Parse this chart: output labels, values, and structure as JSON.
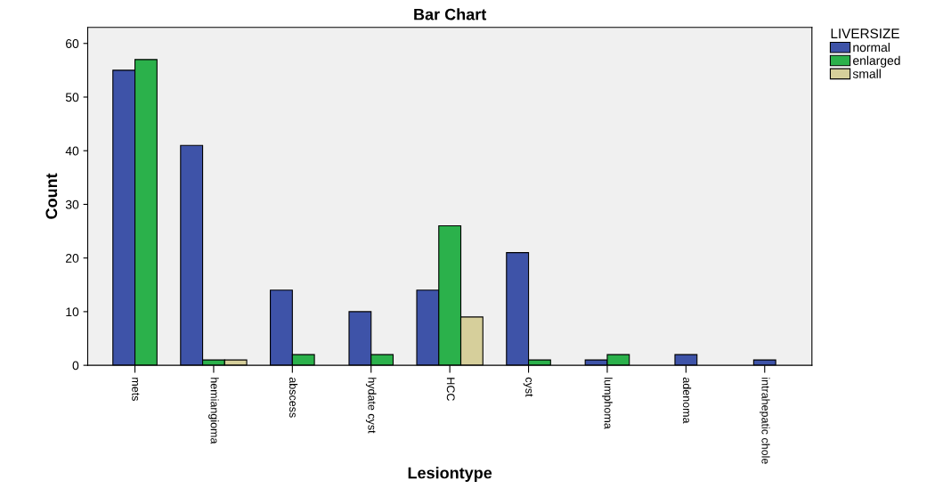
{
  "chart_data": {
    "type": "bar",
    "title": "Bar Chart",
    "xlabel": "Lesiontype",
    "ylabel": "Count",
    "legend_title": "LIVERSIZE",
    "categories": [
      "mets",
      "hemiangioma",
      "abscess",
      "hydate cyst",
      "HCC",
      "cyst",
      "lumphoma",
      "adenoma",
      "intrahepatic chole"
    ],
    "series": [
      {
        "name": "normal",
        "color": "#3e53a8",
        "values": [
          55,
          41,
          14,
          10,
          14,
          21,
          1,
          2,
          1
        ]
      },
      {
        "name": "enlarged",
        "color": "#2bb14b",
        "values": [
          57,
          1,
          2,
          2,
          26,
          1,
          2,
          null,
          null
        ]
      },
      {
        "name": "small",
        "color": "#d6cf9b",
        "values": [
          null,
          1,
          null,
          null,
          9,
          null,
          null,
          null,
          null
        ]
      }
    ],
    "ylim": [
      0,
      63
    ],
    "yticks": [
      0,
      10,
      20,
      30,
      40,
      50,
      60
    ],
    "grid": false,
    "legend": "right"
  }
}
